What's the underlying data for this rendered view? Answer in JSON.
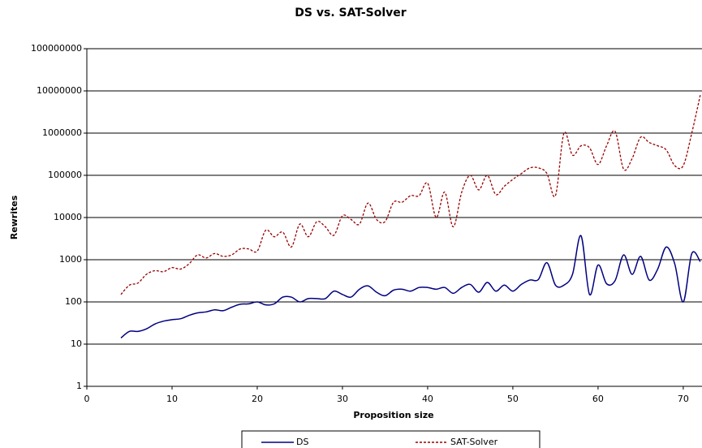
{
  "chart_data": {
    "type": "line",
    "title": "DS vs. SAT-Solver",
    "x_label": "Proposition size",
    "y_label": "Rewrites",
    "x": [
      4,
      5,
      6,
      7,
      8,
      9,
      10,
      11,
      12,
      13,
      14,
      15,
      16,
      17,
      18,
      19,
      20,
      21,
      22,
      23,
      24,
      25,
      26,
      27,
      28,
      29,
      30,
      31,
      32,
      33,
      34,
      35,
      36,
      37,
      38,
      39,
      40,
      41,
      42,
      43,
      44,
      45,
      46,
      47,
      48,
      49,
      50,
      51,
      52,
      53,
      54,
      55,
      56,
      57,
      58,
      59,
      60,
      61,
      62,
      63,
      64,
      65,
      66,
      67,
      68,
      69,
      70,
      71,
      72
    ],
    "series": [
      {
        "name": "DS",
        "color": "#000080",
        "dash": false,
        "values": [
          14,
          20,
          20,
          23,
          30,
          35,
          38,
          40,
          48,
          55,
          58,
          65,
          62,
          75,
          88,
          90,
          100,
          85,
          90,
          130,
          130,
          100,
          120,
          120,
          120,
          180,
          150,
          130,
          200,
          240,
          170,
          140,
          190,
          200,
          180,
          220,
          220,
          200,
          220,
          160,
          220,
          260,
          170,
          290,
          180,
          250,
          180,
          260,
          330,
          340,
          850,
          250,
          250,
          450,
          3700,
          150,
          750,
          270,
          320,
          1300,
          450,
          1200,
          330,
          600,
          2000,
          800,
          100,
          1400,
          900
        ]
      },
      {
        "name": "SAT-Solver",
        "color": "#990000",
        "dash": true,
        "values": [
          150,
          250,
          280,
          450,
          550,
          520,
          650,
          600,
          800,
          1300,
          1100,
          1400,
          1200,
          1300,
          1800,
          1800,
          1600,
          5000,
          3500,
          4500,
          2000,
          7000,
          3500,
          8000,
          6000,
          3800,
          11000,
          9000,
          7000,
          22000,
          9000,
          8000,
          23000,
          23000,
          33000,
          33000,
          65000,
          10000,
          40000,
          6000,
          40000,
          100000,
          45000,
          100000,
          35000,
          55000,
          80000,
          110000,
          150000,
          150000,
          110000,
          33000,
          1000000,
          300000,
          500000,
          450000,
          180000,
          500000,
          1100000,
          140000,
          250000,
          800000,
          600000,
          500000,
          400000,
          170000,
          170000,
          1000000,
          8000000
        ]
      }
    ],
    "xlim": [
      0,
      72.2
    ],
    "xticks": [
      0,
      10,
      20,
      30,
      40,
      50,
      60,
      70
    ],
    "ylim": [
      1,
      100000000
    ],
    "yticks": [
      1,
      10,
      100,
      1000,
      10000,
      100000,
      1000000,
      10000000,
      100000000
    ],
    "log_y": true,
    "grid": true,
    "legend": "bottom"
  }
}
